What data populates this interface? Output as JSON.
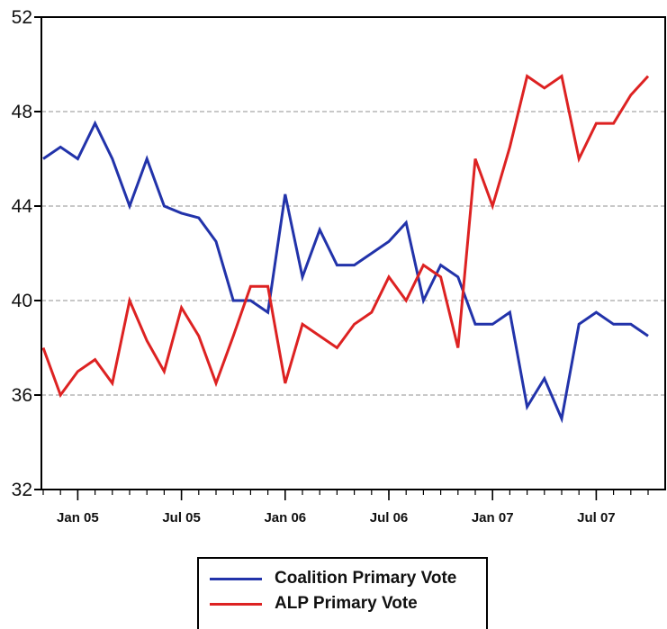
{
  "chart_data": {
    "type": "line",
    "title": "",
    "xlabel": "",
    "ylabel": "",
    "ylim": [
      32,
      52
    ],
    "yticks": [
      "32",
      "36",
      "40",
      "44",
      "48",
      "52"
    ],
    "y_grid": true,
    "xticks": [
      {
        "label": "Jan 05",
        "t": 2
      },
      {
        "label": "Jul 05",
        "t": 8
      },
      {
        "label": "Jan 06",
        "t": 14
      },
      {
        "label": "Jul 06",
        "t": 20
      },
      {
        "label": "Jan 07",
        "t": 26
      },
      {
        "label": "Jul 07",
        "t": 32
      }
    ],
    "series": [
      {
        "name": "Coalition Primary Vote",
        "color": "#2233aa",
        "points": [
          [
            0,
            46
          ],
          [
            1,
            46.5
          ],
          [
            2,
            46
          ],
          [
            3,
            47.5
          ],
          [
            4,
            46
          ],
          [
            5,
            44
          ],
          [
            6,
            46
          ],
          [
            7,
            44
          ],
          [
            8,
            43.7
          ],
          [
            9,
            43.5
          ],
          [
            10,
            42.5
          ],
          [
            11,
            40
          ],
          [
            12,
            40
          ],
          [
            13,
            39.5
          ],
          [
            14,
            44.5
          ],
          [
            15,
            41
          ],
          [
            16,
            43
          ],
          [
            17,
            41.5
          ],
          [
            18,
            41.5
          ],
          [
            19,
            42
          ],
          [
            20,
            42.5
          ],
          [
            21,
            43.3
          ],
          [
            22,
            40
          ],
          [
            23,
            41.5
          ],
          [
            24,
            41
          ],
          [
            25,
            39
          ],
          [
            26,
            39
          ],
          [
            27,
            39.5
          ],
          [
            28,
            35.5
          ],
          [
            29,
            36.7
          ],
          [
            30,
            35
          ],
          [
            31,
            39
          ],
          [
            32,
            39.5
          ],
          [
            33,
            39
          ],
          [
            34,
            39
          ],
          [
            35,
            38.5
          ]
        ]
      },
      {
        "name": "ALP Primary Vote",
        "color": "#dd2222",
        "points": [
          [
            0,
            38
          ],
          [
            1,
            36
          ],
          [
            2,
            37
          ],
          [
            3,
            37.5
          ],
          [
            4,
            36.5
          ],
          [
            5,
            40
          ],
          [
            6,
            38.3
          ],
          [
            7,
            37
          ],
          [
            8,
            39.7
          ],
          [
            9,
            38.5
          ],
          [
            10,
            36.5
          ],
          [
            11,
            38.5
          ],
          [
            12,
            40.6
          ],
          [
            13,
            40.6
          ],
          [
            14,
            36.5
          ],
          [
            15,
            39
          ],
          [
            16,
            38.5
          ],
          [
            17,
            38
          ],
          [
            18,
            39
          ],
          [
            19,
            39.5
          ],
          [
            20,
            41
          ],
          [
            21,
            40
          ],
          [
            22,
            41.5
          ],
          [
            23,
            41
          ],
          [
            24,
            38
          ],
          [
            25,
            46
          ],
          [
            26,
            44
          ],
          [
            27,
            46.5
          ],
          [
            28,
            49.5
          ],
          [
            29,
            49
          ],
          [
            30,
            49.5
          ],
          [
            31,
            46
          ],
          [
            32,
            47.5
          ],
          [
            33,
            47.5
          ],
          [
            34,
            48.7
          ],
          [
            35,
            49.5
          ]
        ]
      }
    ],
    "legend_position": "bottom"
  }
}
